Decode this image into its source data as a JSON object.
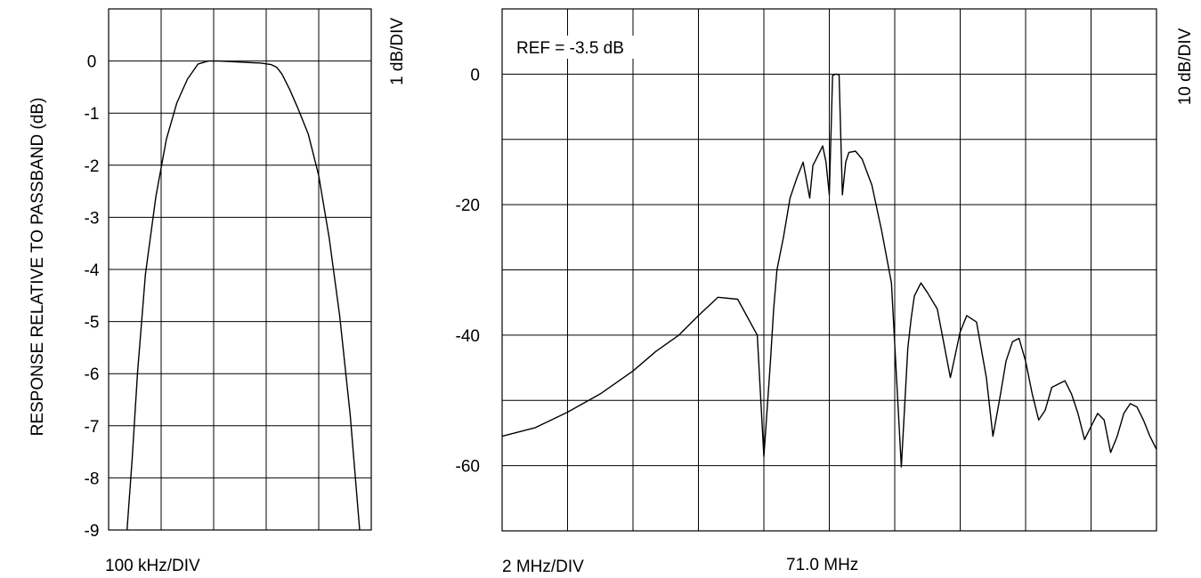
{
  "chart_data": [
    {
      "type": "line",
      "ylabel": "RESPONSE RELATIVE TO PASSBAND (dB)",
      "scale_label": "1 dB/DIV",
      "xlabel": "100 kHz/DIV",
      "yticks": [
        "0",
        "-1",
        "-2",
        "-3",
        "-4",
        "-5",
        "-6",
        "-7",
        "-8",
        "-9"
      ],
      "ylim": [
        -9,
        1
      ],
      "xlim": [
        -250,
        250
      ],
      "x_units": "kHz offset from center",
      "grid": true,
      "series": [
        {
          "x": [
            -215,
            -205,
            -195,
            -180,
            -160,
            -140,
            -120,
            -100,
            -80,
            -60,
            -40,
            -20,
            0,
            20,
            40,
            60,
            70,
            80,
            95,
            110,
            130,
            150,
            170,
            190,
            210,
            228
          ],
          "y": [
            -9.0,
            -7.6,
            -6.0,
            -4.1,
            -2.6,
            -1.5,
            -0.8,
            -0.35,
            -0.06,
            0.0,
            0.0,
            -0.01,
            -0.02,
            -0.03,
            -0.04,
            -0.07,
            -0.12,
            -0.25,
            -0.55,
            -0.9,
            -1.4,
            -2.2,
            -3.4,
            -4.9,
            -6.8,
            -9.0
          ]
        }
      ]
    },
    {
      "type": "line",
      "annotation": "REF = -3.5 dB",
      "scale_label": "10 dB/DIV",
      "xlabel": "2 MHz/DIV",
      "center_label": "71.0 MHz",
      "yticks": [
        "0",
        "-20",
        "-40",
        "-60"
      ],
      "ylim": [
        -70,
        10
      ],
      "xlim": [
        61,
        81
      ],
      "x_units": "MHz",
      "grid": true,
      "series": [
        {
          "x": [
            61.0,
            62.0,
            63.0,
            64.0,
            65.0,
            65.7,
            66.4,
            67.0,
            67.6,
            68.2,
            68.8,
            69.0,
            69.2,
            69.3,
            69.4,
            69.6,
            69.8,
            69.9,
            70.0,
            70.2,
            70.4,
            70.5,
            70.6,
            70.8,
            70.9,
            71.0,
            71.1,
            71.2,
            71.3,
            71.4,
            71.5,
            71.6,
            71.8,
            72.0,
            72.3,
            72.6,
            72.9,
            73.2,
            73.4,
            73.5,
            73.6,
            73.8,
            74.0,
            74.3,
            74.7,
            75.0,
            75.2,
            75.5,
            75.8,
            76.0,
            76.2,
            76.4,
            76.6,
            76.8,
            77.0,
            77.2,
            77.4,
            77.6,
            77.8,
            78.0,
            78.2,
            78.4,
            78.6,
            78.8,
            79.0,
            79.2,
            79.4,
            79.6,
            79.8,
            80.0,
            80.2,
            80.4,
            80.6,
            80.8,
            81.0
          ],
          "y": [
            -55.5,
            -54.2,
            -51.8,
            -49.0,
            -45.5,
            -42.5,
            -40.0,
            -37.0,
            -34.2,
            -34.5,
            -40.0,
            -58.6,
            -44.0,
            -36.0,
            -30.0,
            -25.0,
            -19.0,
            -17.5,
            -16.0,
            -13.5,
            -19.0,
            -14.0,
            -13.0,
            -11.0,
            -13.5,
            -18.5,
            -0.2,
            0.0,
            -0.1,
            -18.5,
            -13.5,
            -12.0,
            -11.8,
            -13.0,
            -17.0,
            -24.0,
            -32.0,
            -60.2,
            -42.0,
            -37.5,
            -34.0,
            -32.0,
            -33.5,
            -36.0,
            -46.5,
            -39.5,
            -37.0,
            -38.0,
            -46.5,
            -55.5,
            -50.0,
            -44.0,
            -41.0,
            -40.5,
            -44.0,
            -49.0,
            -53.0,
            -51.5,
            -48.0,
            -47.5,
            -47.0,
            -49.0,
            -52.0,
            -56.0,
            -54.0,
            -52.0,
            -53.0,
            -58.0,
            -55.5,
            -52.0,
            -50.5,
            -51.0,
            -53.0,
            -55.5,
            -57.5
          ]
        }
      ]
    }
  ]
}
